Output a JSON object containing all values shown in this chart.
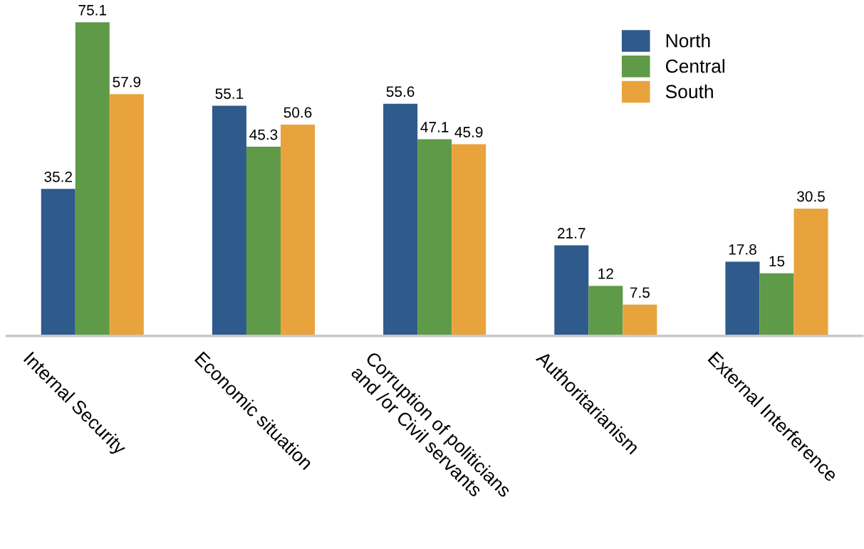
{
  "chart_data": {
    "type": "bar",
    "categories": [
      "Internal Security",
      "Economic situation",
      "Corruption of politicians\nand /or Civil servants",
      "Authoritarianism",
      "External Interference"
    ],
    "series": [
      {
        "name": "North",
        "color": "#2e5a8c",
        "values": [
          35.2,
          55.1,
          55.6,
          21.7,
          17.8
        ]
      },
      {
        "name": "Central",
        "color": "#5e9a48",
        "values": [
          75.1,
          45.3,
          47.1,
          12,
          15
        ]
      },
      {
        "name": "South",
        "color": "#e8a33d",
        "values": [
          57.9,
          50.6,
          45.9,
          7.5,
          30.5
        ]
      }
    ],
    "data_labels": true,
    "legend": "top right",
    "grid": false,
    "tick_labels": "x"
  }
}
